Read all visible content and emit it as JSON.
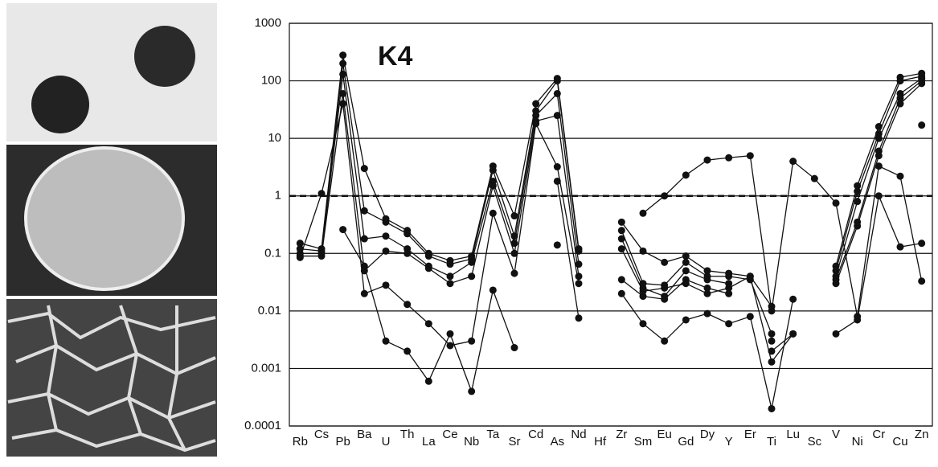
{
  "chart_data": {
    "type": "line",
    "annotation": "K4",
    "log_scale": true,
    "grid": true,
    "reference_line": 1,
    "color": "#111111",
    "categories": [
      "Rb",
      "Cs",
      "Pb",
      "Ba",
      "U",
      "Th",
      "La",
      "Ce",
      "Nb",
      "Ta",
      "Sr",
      "Cd",
      "As",
      "Nd",
      "Hf",
      "Zr",
      "Sm",
      "Eu",
      "Gd",
      "Dy",
      "Y",
      "Er",
      "Ti",
      "Lu",
      "Sc",
      "V",
      "Ni",
      "Cr",
      "Cu",
      "Zn"
    ],
    "ylim": [
      0.0001,
      1000
    ],
    "yticks": [
      0.0001,
      0.001,
      0.01,
      0.1,
      1,
      10,
      100,
      1000
    ],
    "series": [
      {
        "values": [
          0.15,
          0.12,
          280,
          3,
          0.4,
          0.25,
          0.1,
          0.075,
          0.09,
          3.3,
          0.45,
          40,
          110,
          0.12,
          null,
          0.35,
          0.11,
          0.07,
          0.09,
          0.05,
          0.045,
          0.04,
          0.012,
          null,
          null,
          0.06,
          1.5,
          16,
          115,
          135
        ]
      },
      {
        "values": [
          0.12,
          0.11,
          200,
          0.55,
          0.35,
          0.22,
          0.09,
          0.065,
          0.08,
          2.8,
          0.2,
          30,
          100,
          0.11,
          null,
          0.25,
          0.03,
          0.028,
          0.07,
          0.04,
          0.04,
          0.035,
          0.004,
          null,
          null,
          0.05,
          1.2,
          12,
          100,
          120
        ]
      },
      {
        "values": [
          0.1,
          0.1,
          130,
          0.18,
          0.2,
          0.12,
          0.06,
          0.04,
          0.07,
          1.8,
          0.15,
          25,
          60,
          0.065,
          null,
          0.18,
          0.025,
          0.018,
          0.05,
          0.035,
          0.03,
          null,
          0.003,
          null,
          null,
          0.04,
          0.8,
          10,
          60,
          110
        ]
      },
      {
        "values": [
          0.09,
          0.09,
          60,
          0.05,
          0.11,
          0.1,
          0.055,
          0.03,
          0.04,
          1.5,
          0.1,
          20,
          25,
          0.04,
          null,
          0.035,
          0.018,
          0.016,
          0.035,
          0.025,
          0.02,
          null,
          0.002,
          0.004,
          null,
          0.035,
          0.35,
          6,
          50,
          100
        ]
      },
      {
        "values": [
          0.085,
          1.1,
          40,
          0.02,
          0.028,
          0.013,
          0.006,
          0.0025,
          0.003,
          0.5,
          0.045,
          18,
          3.2,
          0.03,
          null,
          0.02,
          0.006,
          0.003,
          0.007,
          0.009,
          0.006,
          0.008,
          0.0002,
          0.016,
          null,
          0.03,
          0.3,
          5,
          40,
          90
        ]
      },
      {
        "values": [
          null,
          null,
          0.26,
          0.06,
          0.003,
          0.002,
          0.0006,
          0.004,
          0.0004,
          0.023,
          0.0023,
          null,
          1.8,
          0.0075,
          null,
          0.12,
          0.022,
          0.025,
          0.03,
          0.02,
          0.025,
          0.04,
          0.0013,
          0.004,
          null,
          0.004,
          0.007,
          1,
          0.13,
          0.15
        ]
      },
      {
        "values": [
          null,
          null,
          null,
          null,
          null,
          null,
          null,
          null,
          null,
          null,
          null,
          null,
          0.14,
          null,
          null,
          null,
          0.5,
          1,
          2.3,
          4.2,
          4.6,
          5,
          0.01,
          4,
          2,
          0.75,
          0.008,
          3.3,
          2.2,
          0.033
        ]
      },
      {
        "values": [
          null,
          null,
          null,
          null,
          null,
          null,
          null,
          null,
          null,
          null,
          null,
          null,
          null,
          null,
          null,
          null,
          null,
          null,
          null,
          null,
          null,
          null,
          null,
          null,
          null,
          null,
          null,
          null,
          null,
          17
        ]
      }
    ]
  }
}
